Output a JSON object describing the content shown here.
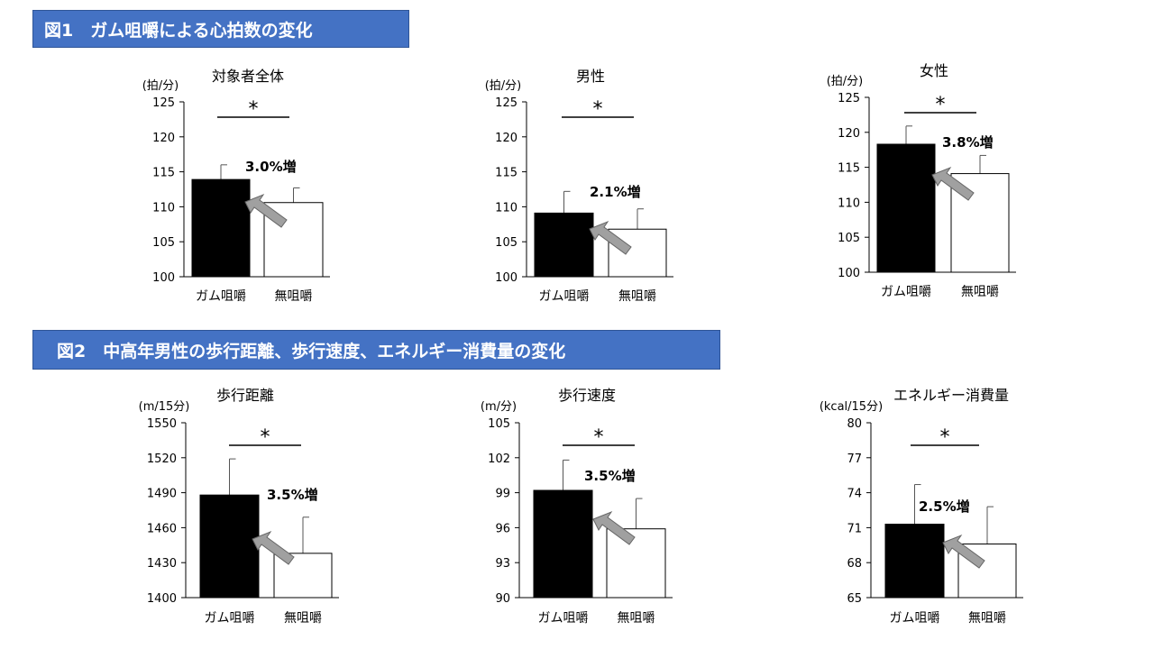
{
  "fig1": {
    "title": "図1　ガム咀嚼による心拍数の変化"
  },
  "fig2": {
    "title": "図2　中高年男性の歩行距離、歩行速度、エネルギー消費量の変化"
  },
  "colors": {
    "header_bg": "#4472c4",
    "bar_gum": "#000000",
    "bar_none": "#ffffff",
    "arrow": "#a0a0a0"
  },
  "chart_data": [
    {
      "type": "bar",
      "title": "対象者全体",
      "unit": "(拍/分)",
      "categories": [
        "ガム咀嚼",
        "無咀嚼"
      ],
      "values": [
        113.9,
        110.6
      ],
      "error": [
        2.1,
        2.1
      ],
      "ylim": [
        100,
        125
      ],
      "ticks": [
        100,
        105,
        110,
        115,
        120,
        125
      ],
      "significance": "*",
      "increase_label": "3.0%増"
    },
    {
      "type": "bar",
      "title": "男性",
      "unit": "(拍/分)",
      "categories": [
        "ガム咀嚼",
        "無咀嚼"
      ],
      "values": [
        109.1,
        106.8
      ],
      "error": [
        3.1,
        2.9
      ],
      "ylim": [
        100,
        125
      ],
      "ticks": [
        100,
        105,
        110,
        115,
        120,
        125
      ],
      "significance": "*",
      "increase_label": "2.1%増"
    },
    {
      "type": "bar",
      "title": "女性",
      "unit": "(拍/分)",
      "categories": [
        "ガム咀嚼",
        "無咀嚼"
      ],
      "values": [
        118.3,
        114.1
      ],
      "error": [
        2.6,
        2.6
      ],
      "ylim": [
        100,
        125
      ],
      "ticks": [
        100,
        105,
        110,
        115,
        120,
        125
      ],
      "significance": "*",
      "increase_label": "3.8%増"
    },
    {
      "type": "bar",
      "title": "歩行距離",
      "unit": "(m/15分)",
      "categories": [
        "ガム咀嚼",
        "無咀嚼"
      ],
      "values": [
        1488,
        1438
      ],
      "error": [
        31,
        31
      ],
      "ylim": [
        1400,
        1550
      ],
      "ticks": [
        1400,
        1430,
        1460,
        1490,
        1520,
        1550
      ],
      "significance": "*",
      "increase_label": "3.5%増"
    },
    {
      "type": "bar",
      "title": "歩行速度",
      "unit": "(m/分)",
      "categories": [
        "ガム咀嚼",
        "無咀嚼"
      ],
      "values": [
        99.2,
        95.9
      ],
      "error": [
        2.6,
        2.6
      ],
      "ylim": [
        90,
        105
      ],
      "ticks": [
        90,
        93,
        96,
        99,
        102,
        105
      ],
      "significance": "*",
      "increase_label": "3.5%増"
    },
    {
      "type": "bar",
      "title": "エネルギー消費量",
      "unit": "(kcal/15分)",
      "categories": [
        "ガム咀嚼",
        "無咀嚼"
      ],
      "values": [
        71.3,
        69.6
      ],
      "error": [
        3.4,
        3.2
      ],
      "ylim": [
        65,
        80
      ],
      "ticks": [
        65,
        68,
        71,
        74,
        77,
        80
      ],
      "significance": "*",
      "increase_label": "2.5%増"
    }
  ]
}
